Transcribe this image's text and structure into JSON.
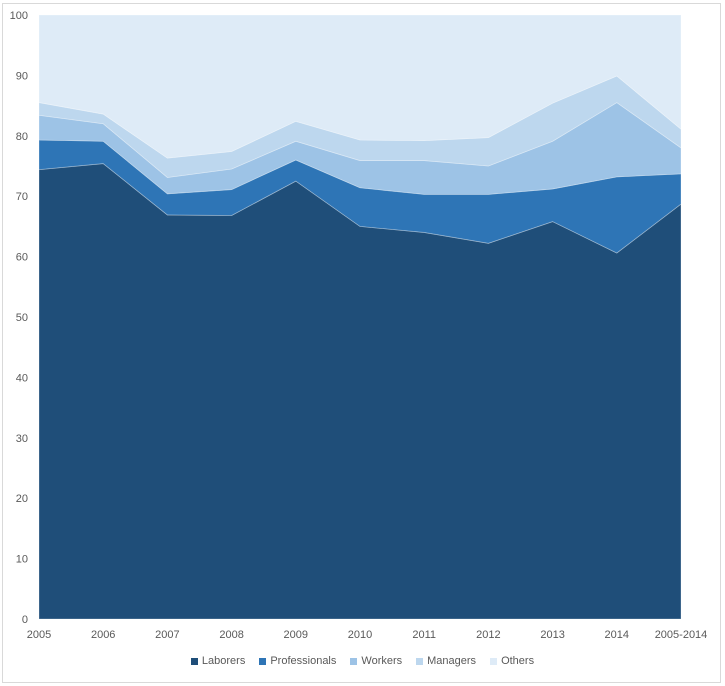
{
  "chart_data": {
    "type": "area",
    "stacked": true,
    "title": "",
    "xlabel": "",
    "ylabel": "",
    "ylim": [
      0,
      100
    ],
    "yticks": [
      0,
      10,
      20,
      30,
      40,
      50,
      60,
      70,
      80,
      90,
      100
    ],
    "categories": [
      "2005",
      "2006",
      "2007",
      "2008",
      "2009",
      "2010",
      "2011",
      "2012",
      "2013",
      "2014",
      "2005-2014"
    ],
    "legend_position": "bottom",
    "grid": false,
    "series": [
      {
        "name": "Laborers",
        "color": "#1f4e79",
        "values": [
          74.4,
          75.4,
          66.9,
          66.8,
          72.5,
          65.0,
          64.0,
          62.2,
          65.8,
          60.6,
          68.7
        ]
      },
      {
        "name": "Professionals",
        "color": "#2e75b6",
        "values": [
          4.9,
          3.7,
          3.5,
          4.3,
          3.5,
          6.4,
          6.3,
          8.1,
          5.4,
          12.6,
          5.0
        ]
      },
      {
        "name": "Workers",
        "color": "#9dc3e6",
        "values": [
          4.1,
          2.9,
          2.7,
          3.4,
          3.1,
          4.5,
          5.6,
          4.7,
          7.9,
          12.3,
          4.3
        ]
      },
      {
        "name": "Managers",
        "color": "#bdd7ee",
        "values": [
          2.1,
          1.6,
          3.2,
          2.9,
          3.3,
          3.4,
          3.3,
          4.7,
          6.3,
          4.4,
          3.1
        ]
      },
      {
        "name": "Others",
        "color": "#deebf7",
        "values": [
          14.5,
          16.4,
          23.7,
          22.6,
          17.6,
          20.7,
          20.8,
          20.3,
          14.6,
          10.1,
          18.9
        ]
      }
    ]
  }
}
